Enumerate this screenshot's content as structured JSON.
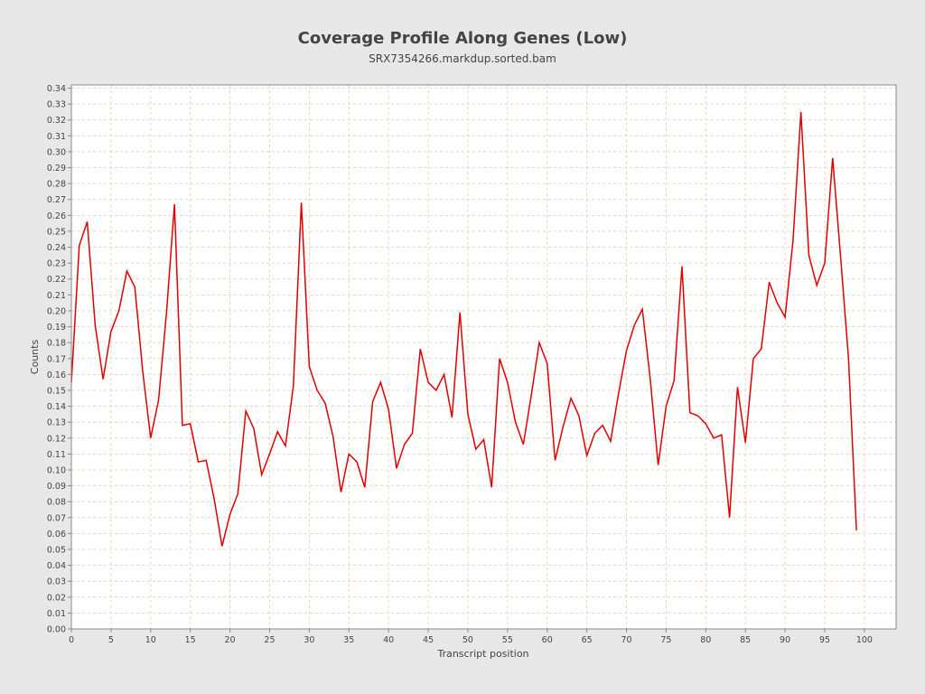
{
  "colors": {
    "background": "#e8e8e8",
    "plot_background": "#ffffff",
    "grid": "#f0c8a8",
    "series": "#e00000",
    "axis": "#888888"
  },
  "chart_data": {
    "type": "line",
    "title": "Coverage Profile Along Genes (Low)",
    "subtitle": "SRX7354266.markdup.sorted.bam",
    "xlabel": "Transcript position",
    "ylabel": "Counts",
    "xlim": [
      0,
      104
    ],
    "ylim": [
      0,
      0.342
    ],
    "grid": true,
    "x_ticks": [
      0,
      5,
      10,
      15,
      20,
      25,
      30,
      35,
      40,
      45,
      50,
      55,
      60,
      65,
      70,
      75,
      80,
      85,
      90,
      95,
      100
    ],
    "y_ticks": [
      "0.00",
      "0.01",
      "0.02",
      "0.03",
      "0.04",
      "0.05",
      "0.06",
      "0.07",
      "0.08",
      "0.09",
      "0.10",
      "0.11",
      "0.12",
      "0.13",
      "0.14",
      "0.15",
      "0.16",
      "0.17",
      "0.18",
      "0.19",
      "0.20",
      "0.21",
      "0.22",
      "0.23",
      "0.24",
      "0.25",
      "0.26",
      "0.27",
      "0.28",
      "0.29",
      "0.30",
      "0.31",
      "0.32",
      "0.33",
      "0.34"
    ],
    "series": [
      {
        "x": [
          0,
          1,
          2,
          3,
          4,
          5,
          6,
          7,
          8,
          9,
          10,
          11,
          12,
          13,
          14,
          15,
          16,
          17,
          18,
          19,
          20,
          21,
          22,
          23,
          24,
          25,
          26,
          27,
          28,
          29,
          30,
          31,
          32,
          33,
          34,
          35,
          36,
          37,
          38,
          39,
          40,
          41,
          42,
          43,
          44,
          45,
          46,
          47,
          48,
          49,
          50,
          51,
          52,
          53,
          54,
          55,
          56,
          57,
          58,
          59,
          60,
          61,
          62,
          63,
          64,
          65,
          66,
          67,
          68,
          69,
          70,
          71,
          72,
          73,
          74,
          75,
          76,
          77,
          78,
          79,
          80,
          81,
          82,
          83,
          84,
          85,
          86,
          87,
          88,
          89,
          90,
          91,
          92,
          93,
          94,
          95,
          96,
          97,
          98,
          99
        ],
        "values": [
          0.155,
          0.241,
          0.256,
          0.191,
          0.157,
          0.187,
          0.2,
          0.225,
          0.215,
          0.162,
          0.12,
          0.144,
          0.199,
          0.267,
          0.128,
          0.129,
          0.105,
          0.106,
          0.082,
          0.052,
          0.072,
          0.085,
          0.137,
          0.126,
          0.097,
          0.11,
          0.124,
          0.115,
          0.153,
          0.268,
          0.165,
          0.15,
          0.142,
          0.121,
          0.086,
          0.11,
          0.105,
          0.089,
          0.143,
          0.155,
          0.138,
          0.101,
          0.116,
          0.123,
          0.176,
          0.155,
          0.15,
          0.16,
          0.133,
          0.199,
          0.135,
          0.113,
          0.119,
          0.089,
          0.17,
          0.155,
          0.13,
          0.116,
          0.147,
          0.18,
          0.167,
          0.106,
          0.127,
          0.145,
          0.134,
          0.109,
          0.123,
          0.128,
          0.118,
          0.148,
          0.175,
          0.191,
          0.201,
          0.157,
          0.103,
          0.14,
          0.156,
          0.228,
          0.136,
          0.134,
          0.129,
          0.12,
          0.122,
          0.07,
          0.152,
          0.117,
          0.17,
          0.176,
          0.218,
          0.205,
          0.196,
          0.244,
          0.325,
          0.235,
          0.216,
          0.23,
          0.296,
          0.234,
          0.17,
          0.062
        ]
      }
    ]
  }
}
